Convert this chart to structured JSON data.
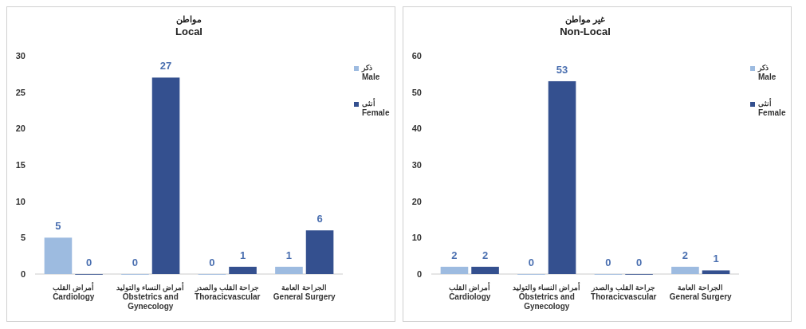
{
  "chart_data": [
    {
      "type": "bar",
      "title": "مواطن\nLocal",
      "categories": [
        "أمراض القلب\nCardiology",
        "أمراض النساء والتوليد\nObstetrics and\nGynecology",
        "جراحة القلب والصدر\nThoracicvascular",
        "الجراحة العامة\nGeneral Surgery"
      ],
      "series": [
        {
          "name": "ذكر\nMale",
          "color": "#9dbbe0",
          "values": [
            5,
            0,
            0,
            1
          ]
        },
        {
          "name": "أنثى\nFemale",
          "color": "#34508f",
          "values": [
            0,
            27,
            1,
            6
          ]
        }
      ],
      "ylim": [
        0,
        30
      ],
      "yticks": [
        0,
        5,
        10,
        15,
        20,
        25,
        30
      ],
      "data_labels": true,
      "legend": "right",
      "grid": false
    },
    {
      "type": "bar",
      "title": "غير مواطن\nNon-Local",
      "categories": [
        "أمراض القلب\nCardiology",
        "أمراض النساء والتوليد\nObstetrics and\nGynecology",
        "جراحة القلب والصدر\nThoracicvascular",
        "الجراحة العامة\nGeneral Surgery"
      ],
      "series": [
        {
          "name": "ذكر\nMale",
          "color": "#9dbbe0",
          "values": [
            2,
            0,
            0,
            2
          ]
        },
        {
          "name": "أنثى\nFemale",
          "color": "#34508f",
          "values": [
            2,
            53,
            0,
            1
          ]
        }
      ],
      "ylim": [
        0,
        60
      ],
      "yticks": [
        0,
        10,
        20,
        30,
        40,
        50,
        60
      ],
      "data_labels": true,
      "legend": "right",
      "grid": false
    }
  ]
}
